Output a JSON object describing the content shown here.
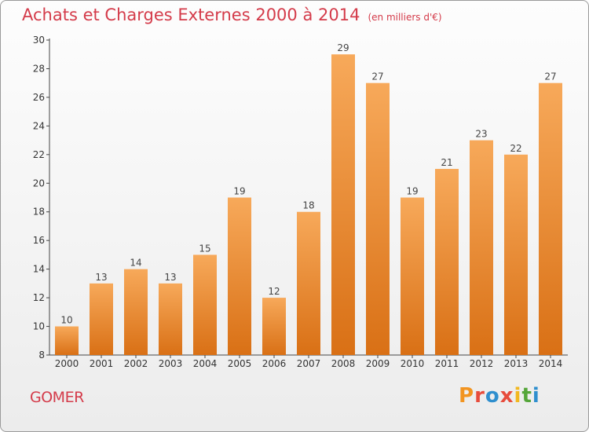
{
  "title": "Achats et Charges Externes 2000 à 2014",
  "subtitle": "(en milliers d'€)",
  "commune": "GOMER",
  "logo": {
    "text": "Proxiti",
    "letters": [
      {
        "ch": "P",
        "color": "#f29420"
      },
      {
        "ch": "r",
        "color": "#e74c3c"
      },
      {
        "ch": "o",
        "color": "#2f8fce"
      },
      {
        "ch": "x",
        "color": "#e74c3c"
      },
      {
        "ch": "i",
        "color": "#f2b820"
      },
      {
        "ch": "t",
        "color": "#55a63a"
      },
      {
        "ch": "i",
        "color": "#2f8fce"
      }
    ]
  },
  "colors": {
    "bar_top": "#f7a95a",
    "bar_bottom": "#d97015",
    "title": "#d43b4a"
  },
  "chart_data": {
    "type": "bar",
    "title": "Achats et Charges Externes 2000 à 2014",
    "subtitle": "(en milliers d'€)",
    "categories": [
      "2000",
      "2001",
      "2002",
      "2003",
      "2004",
      "2005",
      "2006",
      "2007",
      "2008",
      "2009",
      "2010",
      "2011",
      "2012",
      "2013",
      "2014"
    ],
    "values": [
      10,
      13,
      14,
      13,
      15,
      19,
      12,
      18,
      29,
      27,
      19,
      21,
      23,
      22,
      27
    ],
    "ylim": [
      8,
      30
    ],
    "yticks": [
      8,
      10,
      12,
      14,
      16,
      18,
      20,
      22,
      24,
      26,
      28,
      30
    ],
    "grid": false,
    "legend": "none",
    "xlabel": "",
    "ylabel": ""
  }
}
